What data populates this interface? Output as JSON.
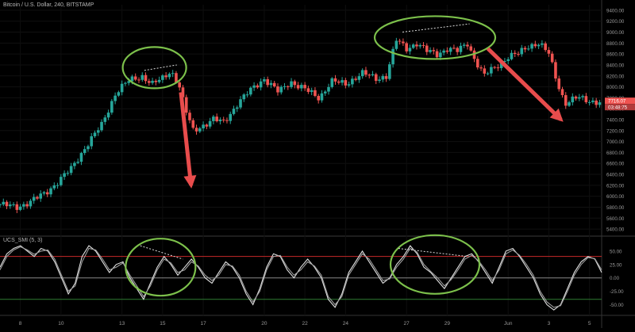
{
  "chart_title": "Bitcoin / U.S. Dollar, 240, BITSTAMP",
  "indicator_title": "UCS_SMI (5, 3)",
  "chart_data": [
    {
      "type": "candlestick",
      "title": "Bitcoin / U.S. Dollar, 240, BITSTAMP",
      "x_ticks": [
        "8",
        "10",
        "13",
        "15",
        "17",
        "20",
        "22",
        "24",
        "27",
        "29",
        "Jun",
        "3",
        "5"
      ],
      "y_ticks": [
        "5400.00",
        "5600.00",
        "5800.00",
        "6000.00",
        "6200.00",
        "6400.00",
        "6600.00",
        "6800.00",
        "7000.00",
        "7200.00",
        "7400.00",
        "7600.00",
        "7800.00",
        "8000.00",
        "8200.00",
        "8400.00",
        "8600.00",
        "8800.00",
        "9000.00",
        "9200.00",
        "9400.00"
      ],
      "ylim": [
        5300,
        9500
      ],
      "last_price_label": "7716.07",
      "countdown_label": "03:48:75",
      "close_path": [
        [
          7.0,
          5850
        ],
        [
          7.8,
          5800
        ],
        [
          8.5,
          5900
        ],
        [
          9.2,
          6050
        ],
        [
          9.8,
          6250
        ],
        [
          10.5,
          6500
        ],
        [
          11.2,
          6900
        ],
        [
          12.0,
          7300
        ],
        [
          12.7,
          7900
        ],
        [
          13.3,
          8100
        ],
        [
          14.0,
          8200
        ],
        [
          14.5,
          8050
        ],
        [
          15.0,
          8150
        ],
        [
          15.4,
          8300
        ],
        [
          15.8,
          8050
        ],
        [
          16.1,
          7600
        ],
        [
          16.5,
          7200
        ],
        [
          17.0,
          7300
        ],
        [
          17.5,
          7400
        ],
        [
          18.0,
          7350
        ],
        [
          18.7,
          7700
        ],
        [
          19.5,
          8000
        ],
        [
          20.0,
          8150
        ],
        [
          20.7,
          7900
        ],
        [
          21.3,
          8100
        ],
        [
          22.0,
          7950
        ],
        [
          22.7,
          7800
        ],
        [
          23.3,
          8100
        ],
        [
          24.0,
          8050
        ],
        [
          24.8,
          8250
        ],
        [
          25.5,
          8150
        ],
        [
          26.0,
          8200
        ],
        [
          26.5,
          8850
        ],
        [
          27.0,
          8700
        ],
        [
          27.5,
          8800
        ],
        [
          28.0,
          8650
        ],
        [
          28.5,
          8600
        ],
        [
          29.0,
          8700
        ],
        [
          29.5,
          8650
        ],
        [
          30.0,
          8800
        ],
        [
          30.3,
          8550
        ],
        [
          30.8,
          8200
        ],
        [
          31.5,
          8400
        ],
        [
          32.0,
          8550
        ],
        [
          32.5,
          8600
        ],
        [
          33.0,
          8750
        ],
        [
          33.5,
          8800
        ],
        [
          34.0,
          8600
        ],
        [
          34.4,
          8100
        ],
        [
          34.8,
          7700
        ],
        [
          35.4,
          7800
        ],
        [
          36.0,
          7750
        ],
        [
          36.5,
          7716
        ]
      ],
      "annotations": {
        "circles_around_price": 2,
        "dotted_lines": 2,
        "arrows": 2,
        "annotation_color": "#7cc04b",
        "arrow_color": "#e84c4c"
      },
      "colors": {
        "up": "#26a69a",
        "down": "#ef5350",
        "background": "#000000"
      }
    },
    {
      "type": "line",
      "title": "UCS_SMI (5, 3)",
      "y_ticks": [
        "50.00",
        "25.00",
        "0.00",
        "-25.00",
        "-50.00"
      ],
      "ylim": [
        -70,
        75
      ],
      "reference_lines": [
        {
          "value": 40,
          "color": "#c62828"
        },
        {
          "value": 0,
          "color": "#888888"
        },
        {
          "value": -40,
          "color": "#2e7d32"
        }
      ],
      "series": [
        {
          "values": [
            20,
            45,
            55,
            60,
            50,
            40,
            55,
            50,
            30,
            0,
            -30,
            -10,
            40,
            60,
            50,
            30,
            10,
            25,
            30,
            0,
            -20,
            -40,
            -10,
            20,
            40,
            25,
            5,
            20,
            35,
            20,
            0,
            -10,
            10,
            30,
            20,
            0,
            -30,
            -50,
            -20,
            20,
            45,
            40,
            15,
            0,
            20,
            35,
            20,
            0,
            -40,
            -55,
            -30,
            10,
            30,
            50,
            30,
            10,
            -10,
            0,
            25,
            40,
            60,
            45,
            20,
            10,
            -5,
            -20,
            0,
            20,
            40,
            45,
            30,
            10,
            -10,
            20,
            50,
            55,
            40,
            20,
            0,
            -30,
            -50,
            -60,
            -50,
            -20,
            10,
            30,
            40,
            35,
            10
          ],
          "color": "#e0e0e0"
        },
        {
          "values": [
            15,
            40,
            52,
            58,
            52,
            44,
            50,
            52,
            35,
            5,
            -25,
            -15,
            30,
            55,
            52,
            35,
            15,
            20,
            28,
            5,
            -15,
            -35,
            -15,
            15,
            35,
            28,
            10,
            15,
            30,
            22,
            5,
            -5,
            5,
            25,
            22,
            5,
            -25,
            -45,
            -25,
            15,
            40,
            42,
            20,
            5,
            15,
            30,
            22,
            5,
            -35,
            -50,
            -35,
            5,
            25,
            45,
            35,
            15,
            -5,
            -2,
            20,
            35,
            55,
            48,
            25,
            12,
            0,
            -15,
            -3,
            15,
            35,
            42,
            32,
            15,
            -5,
            15,
            45,
            52,
            42,
            25,
            5,
            -25,
            -45,
            -55,
            -52,
            -25,
            5,
            25,
            38,
            36,
            15
          ],
          "color": "#9e9e9e"
        }
      ],
      "annotations": {
        "circles": 2,
        "dotted_lines": 2,
        "annotation_color": "#7cc04b"
      }
    }
  ]
}
